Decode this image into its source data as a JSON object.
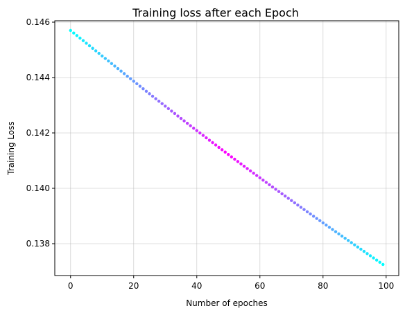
{
  "chart_data": {
    "type": "scatter",
    "title": "Training loss after each Epoch",
    "xlabel": "Number of epoches",
    "ylabel": "Training Loss",
    "xlim": [
      -5,
      104
    ],
    "ylim": [
      0.13685,
      0.14605
    ],
    "xticks": [
      0,
      20,
      40,
      60,
      80,
      100
    ],
    "xtick_labels": [
      "0",
      "20",
      "40",
      "60",
      "80",
      "100"
    ],
    "yticks": [
      0.138,
      0.14,
      0.142,
      0.144,
      0.146
    ],
    "ytick_labels": [
      "0.138",
      "0.140",
      "0.142",
      "0.144",
      "0.146"
    ],
    "grid": true,
    "colormap": "cool",
    "color_endpoints": [
      "#00ffff",
      "#ff00ff"
    ],
    "series": [
      {
        "x_start": 0,
        "x_end": 99,
        "x_step": 1,
        "y_first": 0.1457,
        "y_last": 0.13725,
        "note_shape": "near-linear decrease, slightly convex"
      }
    ]
  }
}
